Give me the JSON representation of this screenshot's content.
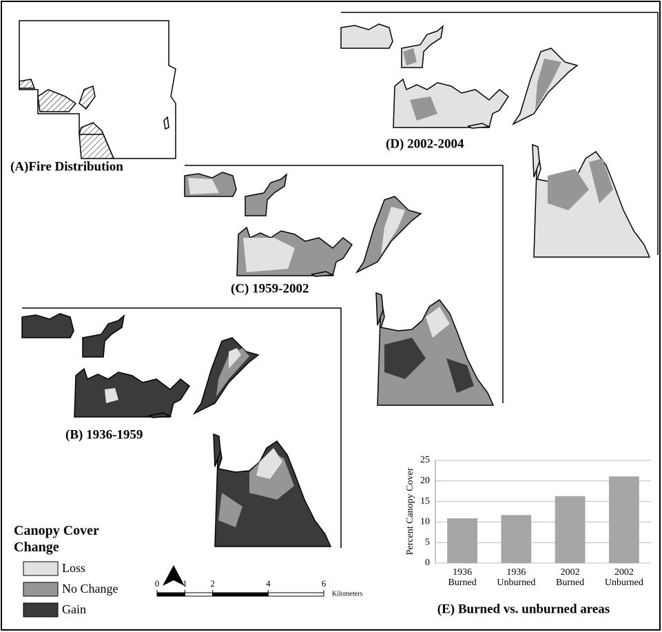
{
  "panels": {
    "a": "(A)Fire Distribution",
    "b": "(B) 1936-1959",
    "c": "(C) 1959-2002",
    "d": "(D) 2002-2004"
  },
  "legend": {
    "title": "Canopy Cover Change",
    "items": [
      {
        "label": "Loss",
        "color": "#e2e2e2"
      },
      {
        "label": "No Change",
        "color": "#969696"
      },
      {
        "label": "Gain",
        "color": "#3b3b3b"
      }
    ]
  },
  "scale_bar": {
    "ticks": [
      0,
      1,
      2,
      4,
      6
    ],
    "unit": "Kilometers"
  },
  "chart_data": {
    "type": "bar",
    "title": "(E) Burned vs. unburned areas",
    "y_label": "Percent Canopy Cover",
    "categories": [
      "1936 Burned",
      "1936 Unburned",
      "2002 Burned",
      "2002 Unburned"
    ],
    "values": [
      10.9,
      11.7,
      16.3,
      21.1
    ],
    "color": "#a6a6a6",
    "ylim": [
      0,
      25
    ],
    "yticks": [
      0,
      5,
      10,
      15,
      20,
      25
    ],
    "grid": true
  }
}
